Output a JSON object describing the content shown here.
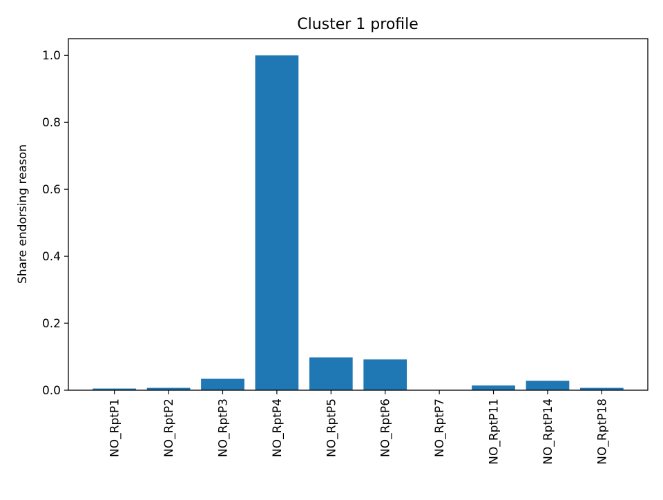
{
  "chart_data": {
    "type": "bar",
    "title": "Cluster 1 profile",
    "xlabel": "",
    "ylabel": "Share endorsing reason",
    "categories": [
      "NO_RptP1",
      "NO_RptP2",
      "NO_RptP3",
      "NO_RptP4",
      "NO_RptP5",
      "NO_RptP6",
      "NO_RptP7",
      "NO_RptP11",
      "NO_RptP14",
      "NO_RptP18"
    ],
    "values": [
      0.005,
      0.007,
      0.034,
      1.0,
      0.098,
      0.092,
      0.0,
      0.014,
      0.028,
      0.007
    ],
    "ylim": [
      0,
      1.05
    ],
    "yticks": [
      0.0,
      0.2,
      0.4,
      0.6,
      0.8,
      1.0
    ],
    "ytick_labels": [
      "0.0",
      "0.2",
      "0.4",
      "0.6",
      "0.8",
      "1.0"
    ],
    "bar_color": "#1f77b4",
    "grid": false,
    "legend": "none"
  }
}
